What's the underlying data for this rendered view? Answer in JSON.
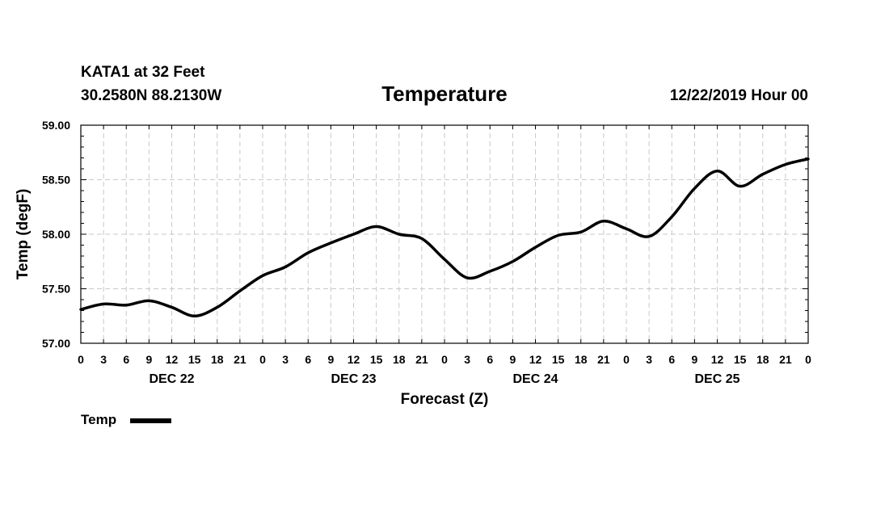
{
  "header": {
    "station": "KATA1 at 32 Feet",
    "location": "30.2580N 88.2130W",
    "datetime": "12/22/2019 Hour 00"
  },
  "chart_data": {
    "type": "line",
    "title": "Temperature",
    "xlabel": "Forecast (Z)",
    "ylabel": "Temp (degF)",
    "ylim": [
      57.0,
      59.0
    ],
    "xlim_hours": [
      0,
      96
    ],
    "grid": true,
    "legend_position": "bottom-left",
    "y_ticks": [
      "57.00",
      "57.50",
      "58.00",
      "58.50",
      "59.00"
    ],
    "y_tick_values": [
      57.0,
      57.5,
      58.0,
      58.5,
      59.0
    ],
    "x_ticks": [
      "0",
      "3",
      "6",
      "9",
      "12",
      "15",
      "18",
      "21",
      "0",
      "3",
      "6",
      "9",
      "12",
      "15",
      "18",
      "21",
      "0",
      "3",
      "6",
      "9",
      "12",
      "15",
      "18",
      "21",
      "0",
      "3",
      "6",
      "9",
      "12",
      "15",
      "18",
      "21",
      "0"
    ],
    "x_day_labels": [
      {
        "label": "DEC 22",
        "hour": 12
      },
      {
        "label": "DEC 23",
        "hour": 36
      },
      {
        "label": "DEC 24",
        "hour": 60
      },
      {
        "label": "DEC 25",
        "hour": 84
      }
    ],
    "series": [
      {
        "name": "Temp",
        "color": "#000000",
        "x_hours": [
          0,
          3,
          6,
          9,
          12,
          15,
          18,
          21,
          24,
          27,
          30,
          33,
          36,
          39,
          42,
          45,
          48,
          51,
          54,
          57,
          60,
          63,
          66,
          69,
          72,
          75,
          78,
          81,
          84,
          87,
          90,
          93,
          96
        ],
        "values": [
          57.31,
          57.36,
          57.35,
          57.39,
          57.33,
          57.25,
          57.33,
          57.48,
          57.62,
          57.7,
          57.83,
          57.92,
          58.0,
          58.07,
          58.0,
          57.96,
          57.77,
          57.6,
          57.66,
          57.75,
          57.88,
          57.99,
          58.02,
          58.12,
          58.05,
          57.98,
          58.16,
          58.42,
          58.58,
          58.44,
          58.55,
          58.64,
          58.69
        ]
      }
    ]
  }
}
